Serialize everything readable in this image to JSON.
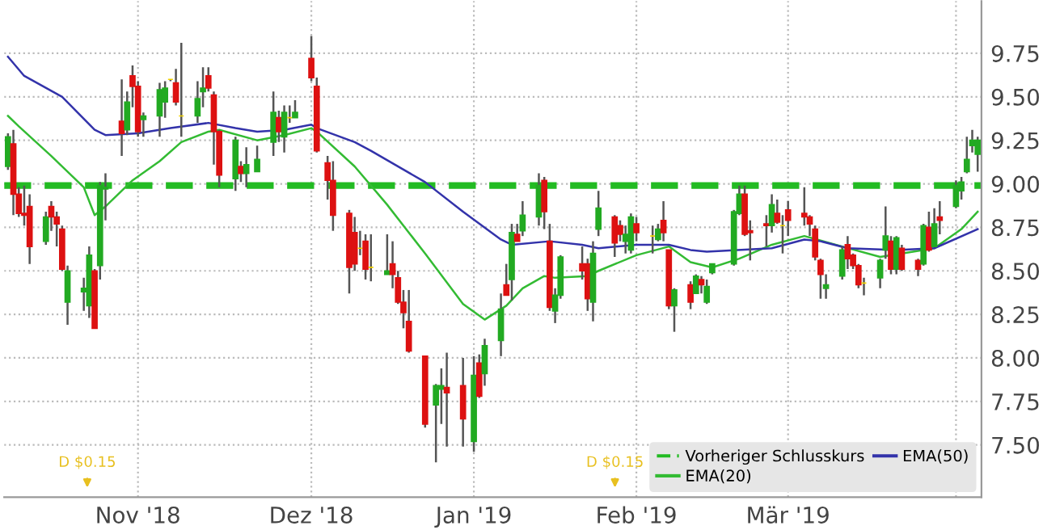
{
  "chart_data": {
    "type": "candlestick",
    "x": [
      "2018-10-08",
      "2018-10-09",
      "2018-10-10",
      "2018-10-11",
      "2018-10-12",
      "2018-10-15",
      "2018-10-16",
      "2018-10-17",
      "2018-10-18",
      "2018-10-19",
      "2018-10-22",
      "2018-10-23",
      "2018-10-24",
      "2018-10-25",
      "2018-10-26",
      "2018-10-29",
      "2018-10-30",
      "2018-10-31",
      "2018-11-01",
      "2018-11-02",
      "2018-11-05",
      "2018-11-06",
      "2018-11-07",
      "2018-11-08",
      "2018-11-09",
      "2018-11-12",
      "2018-11-13",
      "2018-11-14",
      "2018-11-15",
      "2018-11-16",
      "2018-11-19",
      "2018-11-20",
      "2018-11-21",
      "2018-11-23",
      "2018-11-26",
      "2018-11-27",
      "2018-11-28",
      "2018-11-29",
      "2018-11-30",
      "2018-12-03",
      "2018-12-04",
      "2018-12-06",
      "2018-12-07",
      "2018-12-10",
      "2018-12-11",
      "2018-12-12",
      "2018-12-13",
      "2018-12-14",
      "2018-12-17",
      "2018-12-18",
      "2018-12-19",
      "2018-12-20",
      "2018-12-21",
      "2018-12-24",
      "2018-12-26",
      "2018-12-27",
      "2018-12-28",
      "2018-12-31",
      "2019-01-02",
      "2019-01-03",
      "2019-01-04",
      "2019-01-07",
      "2019-01-08",
      "2019-01-09",
      "2019-01-10",
      "2019-01-11",
      "2019-01-14",
      "2019-01-15",
      "2019-01-16",
      "2019-01-17",
      "2019-01-18",
      "2019-01-22",
      "2019-01-23",
      "2019-01-24",
      "2019-01-25",
      "2019-01-28",
      "2019-01-29",
      "2019-01-30",
      "2019-01-31",
      "2019-02-01",
      "2019-02-04",
      "2019-02-05",
      "2019-02-06",
      "2019-02-07",
      "2019-02-08",
      "2019-02-11",
      "2019-02-12",
      "2019-02-13",
      "2019-02-14",
      "2019-02-15",
      "2019-02-19",
      "2019-02-20",
      "2019-02-21",
      "2019-02-22",
      "2019-02-25",
      "2019-02-26",
      "2019-02-27",
      "2019-02-28",
      "2019-03-01",
      "2019-03-04",
      "2019-03-05",
      "2019-03-06",
      "2019-03-07",
      "2019-03-08",
      "2019-03-11",
      "2019-03-12",
      "2019-03-13",
      "2019-03-14",
      "2019-03-15",
      "2019-03-18",
      "2019-03-19",
      "2019-03-20",
      "2019-03-21",
      "2019-03-22",
      "2019-03-25",
      "2019-03-26",
      "2019-03-27",
      "2019-03-28",
      "2019-03-29",
      "2019-04-01",
      "2019-04-02",
      "2019-04-03",
      "2019-04-04",
      "2019-04-05"
    ],
    "ohlc": [
      [
        9.1,
        9.29,
        9.08,
        9.27
      ],
      [
        9.23,
        9.31,
        8.82,
        8.94
      ],
      [
        8.94,
        8.98,
        8.81,
        8.83
      ],
      [
        8.83,
        8.99,
        8.76,
        8.82
      ],
      [
        8.87,
        8.94,
        8.54,
        8.64
      ],
      [
        8.67,
        8.84,
        8.65,
        8.81
      ],
      [
        8.87,
        8.9,
        8.73,
        8.81
      ],
      [
        8.81,
        8.84,
        8.64,
        8.77
      ],
      [
        8.74,
        8.76,
        8.5,
        8.51
      ],
      [
        8.32,
        8.53,
        8.19,
        8.5
      ],
      [
        8.38,
        8.46,
        8.27,
        8.4
      ],
      [
        8.3,
        8.64,
        8.23,
        8.59
      ],
      [
        8.5,
        8.51,
        8.17,
        8.17
      ],
      [
        8.53,
        9.01,
        8.45,
        8.99
      ],
      [
        8.97,
        9.06,
        8.79,
        8.98
      ],
      [
        9.36,
        9.6,
        9.16,
        9.29
      ],
      [
        9.31,
        9.53,
        9.28,
        9.47
      ],
      [
        9.62,
        9.68,
        9.44,
        9.56
      ],
      [
        9.56,
        9.59,
        9.27,
        9.3
      ],
      [
        9.37,
        9.41,
        9.27,
        9.39
      ],
      [
        9.39,
        9.58,
        9.27,
        9.54
      ],
      [
        9.47,
        9.59,
        9.38,
        9.55
      ],
      [
        9.6,
        9.6,
        9.59,
        9.6
      ],
      [
        9.58,
        9.66,
        9.45,
        9.47
      ],
      [
        9.39,
        9.81,
        9.27,
        9.39
      ],
      [
        9.39,
        9.59,
        9.35,
        9.49
      ],
      [
        9.53,
        9.67,
        9.44,
        9.55
      ],
      [
        9.62,
        9.67,
        9.53,
        9.55
      ],
      [
        9.51,
        9.53,
        9.11,
        9.3
      ],
      [
        9.3,
        9.31,
        8.98,
        9.05
      ],
      [
        9.03,
        9.27,
        8.96,
        9.25
      ],
      [
        9.1,
        9.13,
        9.01,
        9.06
      ],
      [
        9.06,
        9.21,
        8.98,
        9.11
      ],
      [
        9.07,
        9.22,
        9.07,
        9.14
      ],
      [
        9.24,
        9.53,
        9.16,
        9.41
      ],
      [
        9.38,
        9.42,
        9.24,
        9.3
      ],
      [
        9.27,
        9.45,
        9.18,
        9.41
      ],
      [
        9.38,
        9.45,
        9.35,
        9.38
      ],
      [
        9.38,
        9.48,
        9.38,
        9.41
      ],
      [
        9.72,
        9.85,
        9.59,
        9.61
      ],
      [
        9.56,
        9.61,
        9.18,
        9.19
      ],
      [
        9.12,
        9.16,
        8.91,
        9.02
      ],
      [
        9.02,
        9.13,
        8.73,
        8.82
      ],
      [
        8.83,
        8.85,
        8.37,
        8.52
      ],
      [
        8.72,
        8.81,
        8.5,
        8.54
      ],
      [
        8.63,
        8.73,
        8.59,
        8.63
      ],
      [
        8.67,
        8.71,
        8.45,
        8.51
      ],
      [
        8.52,
        8.71,
        8.44,
        8.52
      ],
      [
        8.48,
        8.71,
        8.48,
        8.5
      ],
      [
        8.54,
        8.67,
        8.4,
        8.48
      ],
      [
        8.46,
        8.5,
        8.31,
        8.32
      ],
      [
        8.32,
        8.39,
        8.17,
        8.26
      ],
      [
        8.21,
        8.39,
        8.03,
        8.04
      ],
      [
        8.01,
        8.01,
        7.6,
        7.62
      ],
      [
        7.73,
        7.85,
        7.4,
        7.84
      ],
      [
        7.82,
        7.94,
        7.62,
        7.84
      ],
      [
        7.83,
        8.03,
        7.49,
        7.8
      ],
      [
        7.84,
        8.0,
        7.49,
        7.65
      ],
      [
        7.52,
        8.01,
        7.46,
        7.9
      ],
      [
        7.97,
        8.02,
        7.77,
        7.78
      ],
      [
        7.91,
        8.11,
        7.84,
        8.07
      ],
      [
        8.1,
        8.37,
        8.01,
        8.28
      ],
      [
        8.42,
        8.54,
        8.36,
        8.36
      ],
      [
        8.45,
        8.77,
        8.33,
        8.72
      ],
      [
        8.71,
        8.77,
        8.67,
        8.67
      ],
      [
        8.73,
        8.9,
        8.7,
        8.82
      ],
      [
        8.81,
        9.06,
        8.76,
        8.99
      ],
      [
        9.02,
        9.04,
        8.74,
        8.84
      ],
      [
        8.67,
        8.77,
        8.27,
        8.29
      ],
      [
        8.27,
        8.4,
        8.2,
        8.36
      ],
      [
        8.36,
        8.59,
        8.34,
        8.58
      ],
      [
        8.54,
        8.64,
        8.45,
        8.5
      ],
      [
        8.54,
        8.57,
        8.27,
        8.34
      ],
      [
        8.32,
        8.67,
        8.21,
        8.6
      ],
      [
        8.74,
        8.96,
        8.7,
        8.86
      ],
      [
        8.81,
        8.82,
        8.58,
        8.66
      ],
      [
        8.76,
        8.79,
        8.67,
        8.71
      ],
      [
        8.67,
        8.76,
        8.6,
        8.71
      ],
      [
        8.62,
        8.83,
        8.6,
        8.81
      ],
      [
        8.77,
        8.81,
        8.67,
        8.72
      ],
      [
        8.7,
        8.76,
        8.6,
        8.7
      ],
      [
        8.68,
        8.77,
        8.67,
        8.74
      ],
      [
        8.79,
        8.9,
        8.67,
        8.72
      ],
      [
        8.62,
        8.62,
        8.28,
        8.3
      ],
      [
        8.3,
        8.4,
        8.15,
        8.39
      ],
      [
        8.42,
        8.44,
        8.28,
        8.32
      ],
      [
        8.37,
        8.48,
        8.37,
        8.47
      ],
      [
        8.45,
        8.47,
        8.37,
        8.42
      ],
      [
        8.32,
        8.45,
        8.31,
        8.41
      ],
      [
        8.49,
        8.54,
        8.48,
        8.54
      ],
      [
        8.54,
        8.85,
        8.53,
        8.84
      ],
      [
        8.83,
        8.99,
        8.82,
        8.94
      ],
      [
        8.94,
        8.99,
        8.7,
        8.71
      ],
      [
        8.73,
        8.79,
        8.56,
        8.72
      ],
      [
        8.77,
        8.82,
        8.64,
        8.76
      ],
      [
        8.76,
        8.94,
        8.72,
        8.88
      ],
      [
        8.83,
        8.91,
        8.77,
        8.78
      ],
      [
        8.76,
        8.82,
        8.6,
        8.76
      ],
      [
        8.85,
        8.9,
        8.7,
        8.79
      ],
      [
        8.83,
        8.98,
        8.76,
        8.81
      ],
      [
        8.81,
        8.82,
        8.7,
        8.77
      ],
      [
        8.74,
        8.76,
        8.56,
        8.58
      ],
      [
        8.56,
        8.57,
        8.34,
        8.48
      ],
      [
        8.4,
        8.48,
        8.34,
        8.42
      ],
      [
        8.47,
        8.64,
        8.45,
        8.62
      ],
      [
        8.65,
        8.7,
        8.51,
        8.57
      ],
      [
        8.59,
        8.6,
        8.51,
        8.53
      ],
      [
        8.53,
        8.54,
        8.4,
        8.42
      ],
      [
        8.43,
        8.46,
        8.36,
        8.43
      ],
      [
        8.46,
        8.57,
        8.4,
        8.56
      ],
      [
        8.62,
        8.87,
        8.57,
        8.7
      ],
      [
        8.67,
        8.7,
        8.48,
        8.51
      ],
      [
        8.51,
        8.7,
        8.48,
        8.69
      ],
      [
        8.63,
        8.65,
        8.5,
        8.51
      ],
      [
        8.56,
        8.57,
        8.47,
        8.51
      ],
      [
        8.54,
        8.77,
        8.53,
        8.76
      ],
      [
        8.75,
        8.84,
        8.61,
        8.62
      ],
      [
        8.64,
        8.86,
        8.64,
        8.77
      ],
      [
        8.81,
        8.9,
        8.71,
        8.79
      ],
      [
        8.87,
        9.02,
        8.86,
        8.99
      ],
      [
        8.96,
        9.04,
        8.91,
        9.01
      ],
      [
        9.07,
        9.27,
        9.06,
        9.14
      ],
      [
        9.22,
        9.31,
        9.18,
        9.25
      ],
      [
        9.17,
        9.27,
        9.07,
        9.25
      ]
    ],
    "colors": [
      "#22aa22",
      "#dd1111",
      "#dd1111",
      "#dd1111",
      "#dd1111",
      "#22aa22",
      "#dd1111",
      "#dd1111",
      "#dd1111",
      "#22aa22",
      "#22aa22",
      "#22aa22",
      "#dd1111",
      "#22aa22",
      "#22aa22",
      "#dd1111",
      "#22aa22",
      "#dd1111",
      "#dd1111",
      "#22aa22",
      "#22aa22",
      "#22aa22",
      "#f2d200",
      "#dd1111",
      "#f2d200",
      "#22aa22",
      "#22aa22",
      "#dd1111",
      "#dd1111",
      "#dd1111",
      "#22aa22",
      "#dd1111",
      "#22aa22",
      "#22aa22",
      "#22aa22",
      "#dd1111",
      "#22aa22",
      "#f2d200",
      "#22aa22",
      "#dd1111",
      "#dd1111",
      "#dd1111",
      "#dd1111",
      "#dd1111",
      "#dd1111",
      "#f2d200",
      "#dd1111",
      "#f2d200",
      "#22aa22",
      "#dd1111",
      "#dd1111",
      "#dd1111",
      "#dd1111",
      "#dd1111",
      "#22aa22",
      "#22aa22",
      "#dd1111",
      "#dd1111",
      "#22aa22",
      "#dd1111",
      "#22aa22",
      "#22aa22",
      "#dd1111",
      "#22aa22",
      "#dd1111",
      "#22aa22",
      "#22aa22",
      "#dd1111",
      "#dd1111",
      "#22aa22",
      "#22aa22",
      "#dd1111",
      "#dd1111",
      "#22aa22",
      "#22aa22",
      "#dd1111",
      "#dd1111",
      "#22aa22",
      "#22aa22",
      "#dd1111",
      "#f2d200",
      "#22aa22",
      "#dd1111",
      "#dd1111",
      "#22aa22",
      "#dd1111",
      "#22aa22",
      "#dd1111",
      "#22aa22",
      "#22aa22",
      "#22aa22",
      "#22aa22",
      "#dd1111",
      "#dd1111",
      "#dd1111",
      "#22aa22",
      "#dd1111",
      "#f2d200",
      "#dd1111",
      "#dd1111",
      "#dd1111",
      "#dd1111",
      "#dd1111",
      "#22aa22",
      "#22aa22",
      "#dd1111",
      "#dd1111",
      "#dd1111",
      "#f2d200",
      "#22aa22",
      "#22aa22",
      "#dd1111",
      "#22aa22",
      "#dd1111",
      "#dd1111",
      "#22aa22",
      "#dd1111",
      "#22aa22",
      "#dd1111",
      "#22aa22",
      "#22aa22",
      "#22aa22",
      "#22aa22",
      "#22aa22"
    ],
    "series": [
      {
        "type": "line",
        "name": "EMA(20)",
        "color": "#33bb33",
        "x": [
          "2018-10-08",
          "2018-10-10",
          "2018-10-16",
          "2018-10-22",
          "2018-10-24",
          "2018-10-26",
          "2018-10-31",
          "2018-11-05",
          "2018-11-09",
          "2018-11-14",
          "2018-11-16",
          "2018-11-23",
          "2018-11-28",
          "2018-12-03",
          "2018-12-04",
          "2018-12-11",
          "2018-12-17",
          "2018-12-24",
          "2018-12-31",
          "2019-01-04",
          "2019-01-08",
          "2019-01-11",
          "2019-01-15",
          "2019-01-17",
          "2019-01-23",
          "2019-01-25",
          "2019-02-01",
          "2019-02-07",
          "2019-02-11",
          "2019-02-15",
          "2019-02-20",
          "2019-02-26",
          "2019-03-04",
          "2019-03-11",
          "2019-03-18",
          "2019-03-22",
          "2019-03-28",
          "2019-04-02",
          "2019-04-05"
        ],
        "values": [
          9.39,
          9.33,
          9.16,
          8.98,
          8.82,
          8.87,
          9.02,
          9.13,
          9.24,
          9.3,
          9.31,
          9.25,
          9.28,
          9.32,
          9.3,
          9.1,
          8.88,
          8.6,
          8.31,
          8.22,
          8.3,
          8.4,
          8.47,
          8.46,
          8.47,
          8.5,
          8.59,
          8.64,
          8.55,
          8.52,
          8.57,
          8.65,
          8.7,
          8.64,
          8.58,
          8.6,
          8.63,
          8.74,
          8.84
        ]
      },
      {
        "type": "line",
        "name": "EMA(50)",
        "color": "#3333aa",
        "x": [
          "2018-10-08",
          "2018-10-11",
          "2018-10-18",
          "2018-10-24",
          "2018-10-26",
          "2018-11-01",
          "2018-11-07",
          "2018-11-14",
          "2018-11-19",
          "2018-11-23",
          "2018-11-28",
          "2018-12-03",
          "2018-12-04",
          "2018-12-11",
          "2018-12-14",
          "2018-12-24",
          "2018-12-31",
          "2019-01-07",
          "2019-01-09",
          "2019-01-16",
          "2019-01-22",
          "2019-01-25",
          "2019-02-01",
          "2019-02-07",
          "2019-02-11",
          "2019-02-14",
          "2019-02-26",
          "2019-03-04",
          "2019-03-07",
          "2019-03-12",
          "2019-03-21",
          "2019-03-28",
          "2019-04-05"
        ],
        "values": [
          9.73,
          9.62,
          9.5,
          9.31,
          9.28,
          9.29,
          9.32,
          9.35,
          9.32,
          9.3,
          9.31,
          9.34,
          9.32,
          9.24,
          9.19,
          9.01,
          8.84,
          8.68,
          8.65,
          8.67,
          8.65,
          8.63,
          8.65,
          8.65,
          8.62,
          8.61,
          8.63,
          8.68,
          8.67,
          8.63,
          8.62,
          8.63,
          8.74
        ]
      }
    ],
    "ref_lines": [
      {
        "axis": "y",
        "value": 8.99,
        "label": "Vorheriger Schlusskurs",
        "color": "#22bb22",
        "line_style": "dashed"
      }
    ],
    "annotations": [
      "D $0.15",
      "D $0.15"
    ],
    "xlim": [
      "2018-10-08",
      "2019-04-05"
    ],
    "xticks": [
      {
        "value": "2018-11-01",
        "label": "Nov '18"
      },
      {
        "value": "2018-12-03",
        "label": "Dez '18"
      },
      {
        "value": "2019-01-02",
        "label": "Jan '19"
      },
      {
        "value": "2019-02-01",
        "label": "Feb '19"
      },
      {
        "value": "2019-03-01",
        "label": "Mär '19"
      },
      {
        "value": "2019-04-01",
        "label": null
      }
    ],
    "ylim": [
      7.2,
      10.05
    ],
    "yticks": [
      {
        "value": 7.5,
        "label": "7.50"
      },
      7.75,
      {
        "value": 8.0,
        "label": "8.00"
      },
      8.25,
      {
        "value": 8.5,
        "label": "8.50"
      },
      8.75,
      {
        "value": 9.0,
        "label": "9.00"
      },
      9.25,
      {
        "value": 9.5,
        "label": "9.50"
      },
      9.75
    ],
    "grid": true,
    "legend": "bottom right"
  }
}
